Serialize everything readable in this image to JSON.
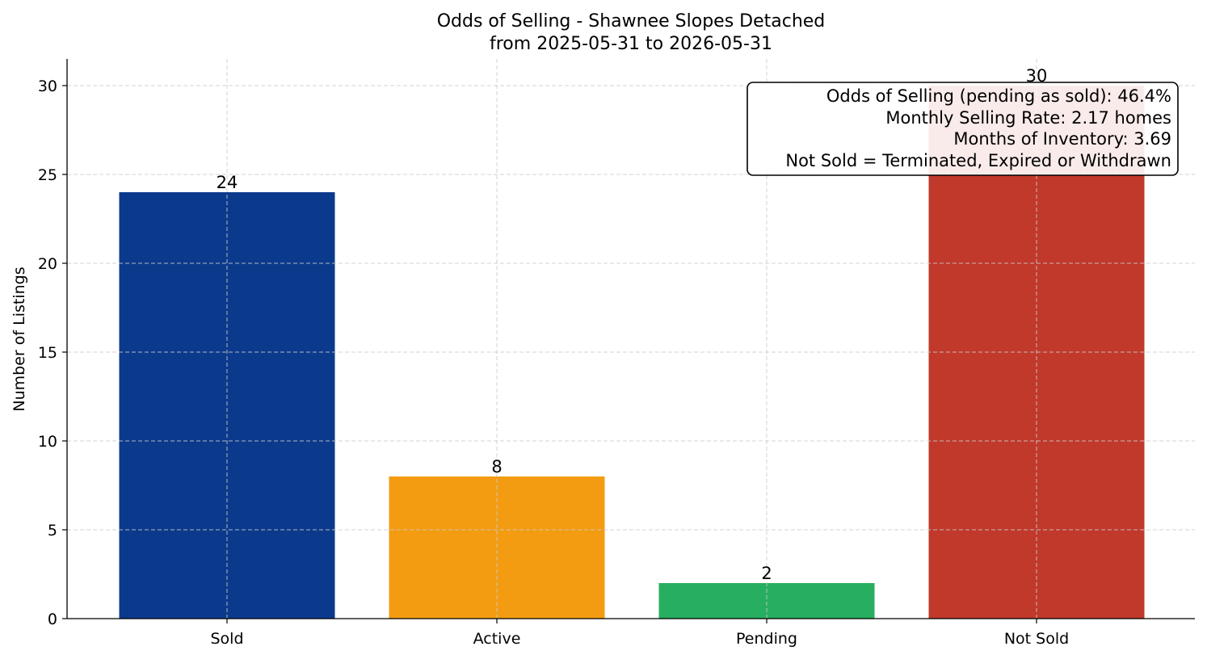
{
  "chart_data": {
    "type": "bar",
    "title": "Odds of Selling - Shawnee Slopes Detached",
    "subtitle": "from 2025-05-31 to 2026-05-31",
    "xlabel": "",
    "ylabel": "Number of Listings",
    "categories": [
      "Sold",
      "Active",
      "Pending",
      "Not Sold"
    ],
    "values": [
      24,
      8,
      2,
      30
    ],
    "colors": [
      "#0b3a8c",
      "#f39c12",
      "#27ae60",
      "#c0392b"
    ],
    "ylim": [
      0,
      31.5
    ],
    "yticks": [
      0,
      5,
      10,
      15,
      20,
      25,
      30
    ],
    "grid": true,
    "annotation": {
      "lines": [
        "Odds of Selling (pending as sold): 46.4%",
        "Monthly Selling Rate: 2.17 homes",
        "Months of Inventory: 3.69",
        "Not Sold = Terminated, Expired or Withdrawn"
      ],
      "position": "top-right"
    }
  }
}
